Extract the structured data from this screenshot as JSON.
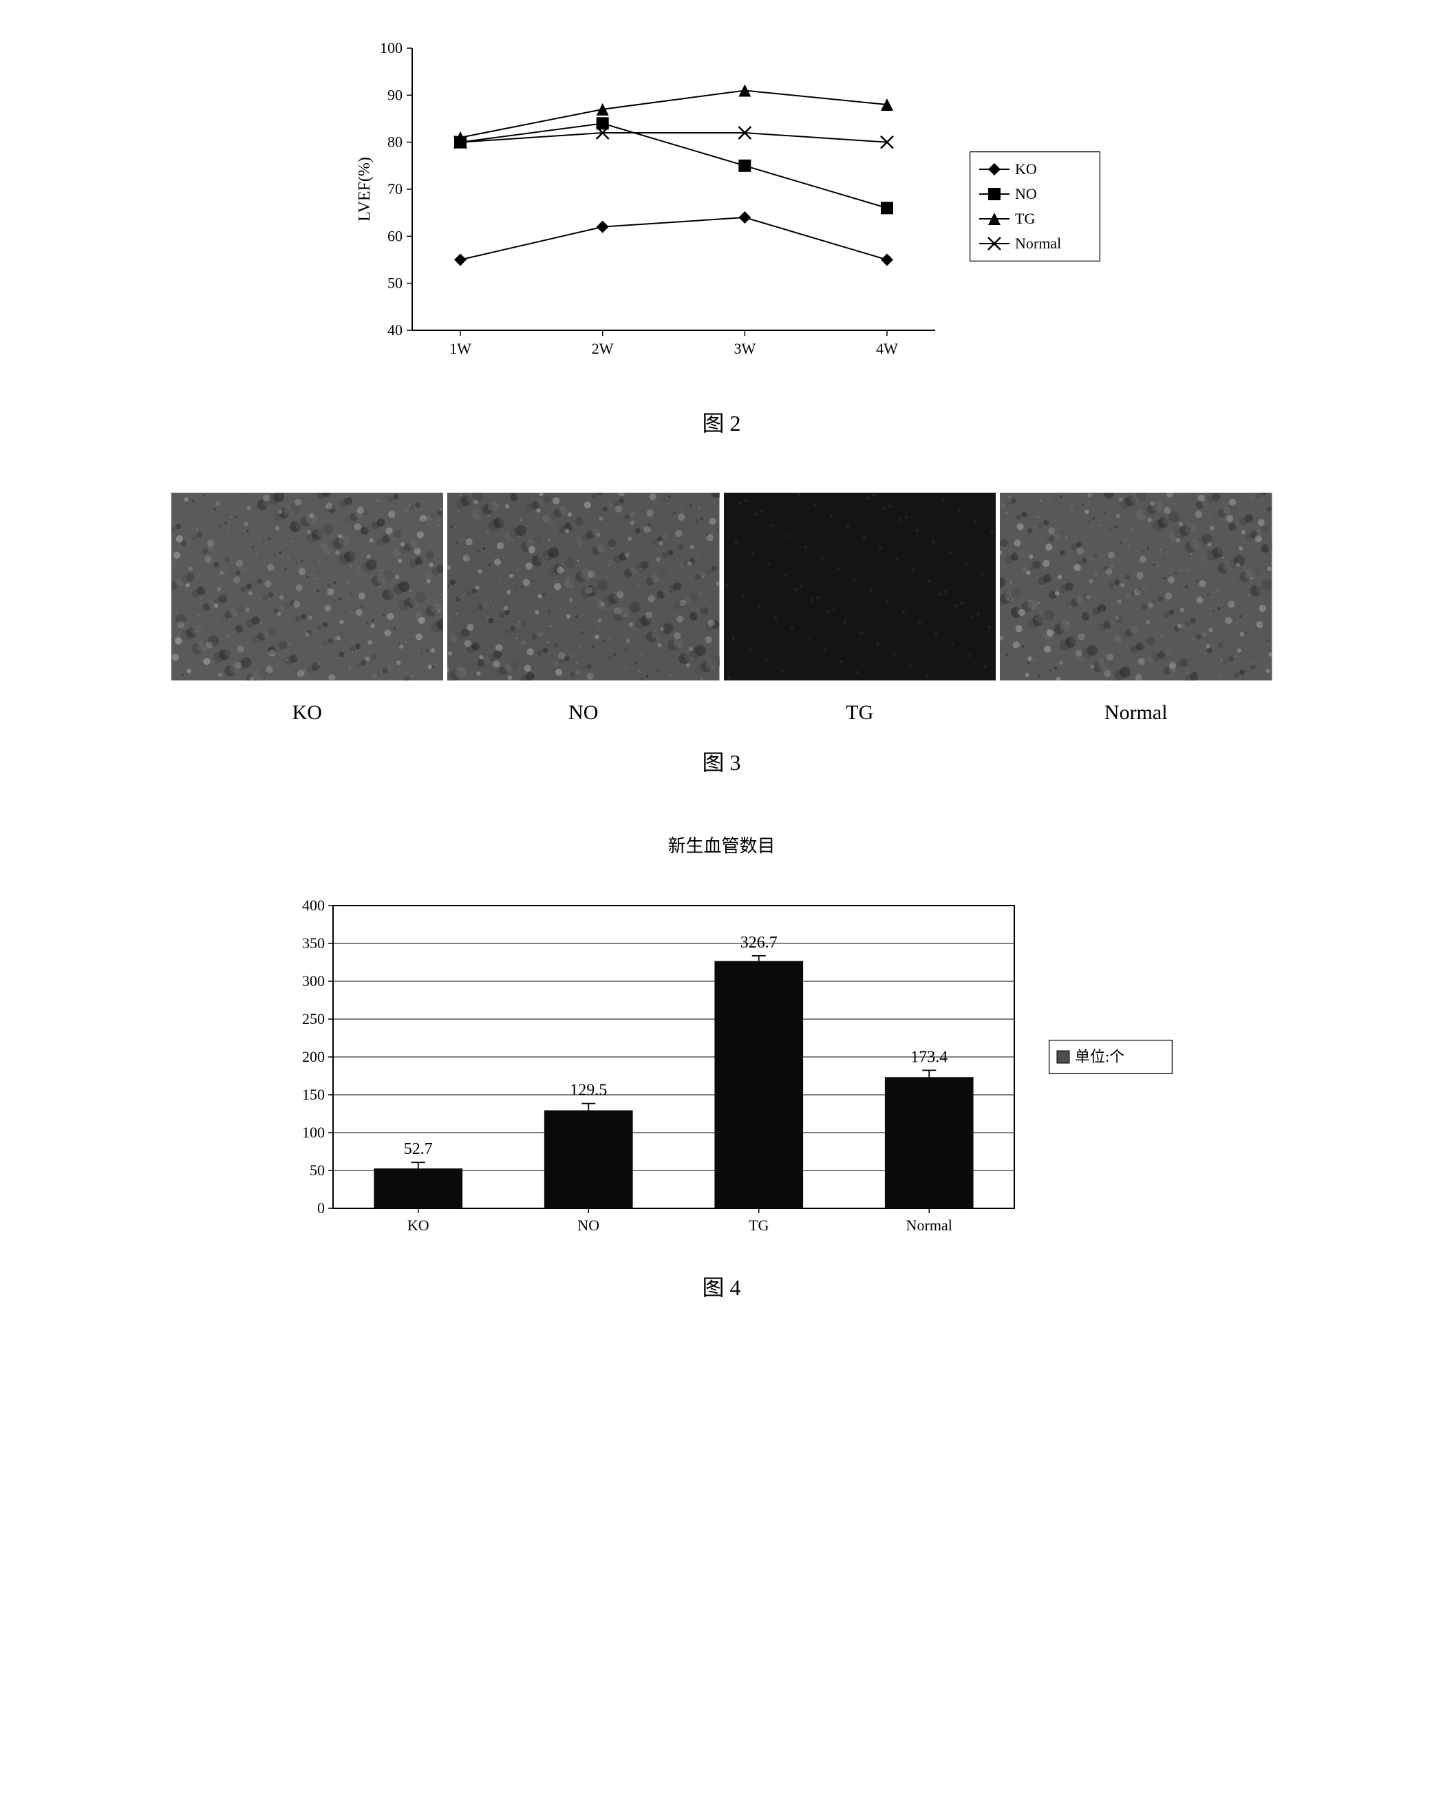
{
  "figure2": {
    "caption": "图 2",
    "chart": {
      "type": "line",
      "ylabel": "LVEF(%)",
      "xlabels": [
        "1W",
        "2W",
        "3W",
        "4W"
      ],
      "ylim": [
        40,
        100
      ],
      "ytick_step": 10,
      "background_color": "#ffffff",
      "axis_color": "#000000",
      "tick_fontsize": 22,
      "axis_label_fontsize": 24,
      "series": [
        {
          "name": "KO",
          "marker": "diamond",
          "color": "#000000",
          "values": [
            55,
            62,
            64,
            55
          ]
        },
        {
          "name": "NO",
          "marker": "square",
          "color": "#000000",
          "values": [
            80,
            84,
            75,
            66
          ]
        },
        {
          "name": "TG",
          "marker": "triangle",
          "color": "#000000",
          "values": [
            81,
            87,
            91,
            88
          ]
        },
        {
          "name": "Normal",
          "marker": "x",
          "color": "#000000",
          "values": [
            80,
            82,
            82,
            80
          ]
        }
      ],
      "legend_border": "#000000",
      "legend_fontsize": 22,
      "line_width": 2,
      "marker_size": 9
    }
  },
  "figure3": {
    "caption": "图 3",
    "panels": [
      {
        "label": "KO",
        "fill": "#5a5a5a",
        "texture": "mottled-light"
      },
      {
        "label": "NO",
        "fill": "#555555",
        "texture": "mottled-medium"
      },
      {
        "label": "TG",
        "fill": "#141414",
        "texture": "solid-dark"
      },
      {
        "label": "Normal",
        "fill": "#585858",
        "texture": "mottled-light"
      }
    ]
  },
  "figure4": {
    "caption": "图 4",
    "chart": {
      "type": "bar",
      "title": "新生血管数目",
      "title_fontsize": 26,
      "categories": [
        "KO",
        "NO",
        "TG",
        "Normal"
      ],
      "values": [
        52.7,
        129.5,
        326.7,
        173.4
      ],
      "errors": [
        8,
        9,
        7,
        9
      ],
      "bar_color": "#0a0a0a",
      "ylim": [
        0,
        400
      ],
      "ytick_step": 50,
      "background_color": "#ffffff",
      "axis_color": "#000000",
      "grid_color": "#000000",
      "tick_fontsize": 22,
      "value_label_fontsize": 24,
      "bar_width": 0.52,
      "legend_label": "单位:个",
      "legend_swatch_color": "#4d4d4d",
      "legend_border": "#000000",
      "legend_fontsize": 22
    }
  }
}
